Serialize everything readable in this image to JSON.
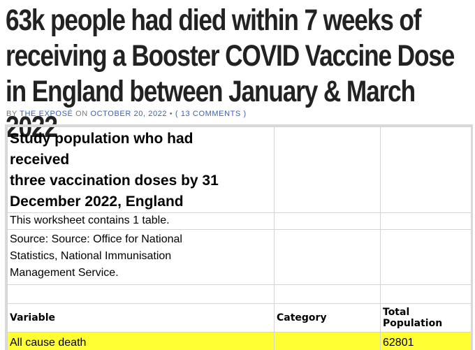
{
  "article": {
    "headline": "63k people had died within 7 weeks of receiving a Booster COVID Vaccine Dose in England between January & March 2022",
    "byline": {
      "by_label": "BY",
      "author": "THE EXPOSÉ",
      "on_label": "ON",
      "date": "OCTOBER 20, 2022",
      "separator": "•",
      "comments": "( 13 COMMENTS )"
    }
  },
  "sheet": {
    "title_lines": [
      "Study population who had",
      "received",
      "three vaccination doses by 31",
      "December 2022, England"
    ],
    "info": "This worksheet contains 1 table.",
    "source_lines": [
      "Source: Source: Office for National",
      "Statistics, National Immunisation",
      "Management Service."
    ],
    "headers": [
      "Variable",
      "Category",
      "Total Population"
    ],
    "rows": [
      {
        "variable": "All cause death",
        "category": "",
        "total": "62801"
      }
    ]
  },
  "colors": {
    "headline": "#222222",
    "byline": "#777777",
    "byline_accent": "#3a5fb0",
    "highlight": "#ffff33",
    "gridline": "#d4d4d4"
  }
}
